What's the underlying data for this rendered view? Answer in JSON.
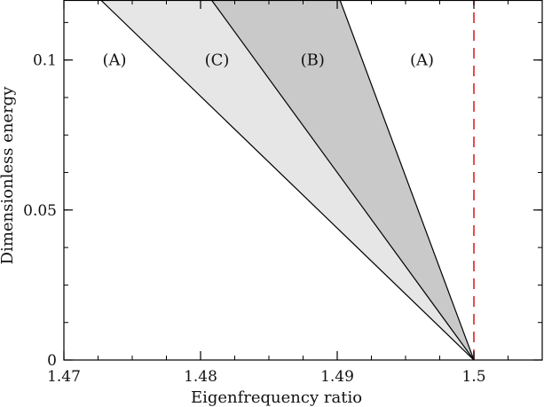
{
  "chart_data": {
    "type": "area",
    "title": "",
    "xlabel": "Eigenfrequency ratio",
    "ylabel": "Dimensionless energy",
    "xlim": [
      1.47,
      1.505
    ],
    "ylim": [
      0,
      0.12
    ],
    "x_ticks": [
      1.47,
      1.48,
      1.49,
      1.5
    ],
    "x_tick_labels": [
      "1.47",
      "1.48",
      "1.49",
      "1.5"
    ],
    "y_ticks": [
      0,
      0.05,
      0.1
    ],
    "y_tick_labels": [
      "0",
      "0.05",
      "0.1"
    ],
    "x_minor_step": 0.0025,
    "y_minor_step": 0.0125,
    "grid": false,
    "boundary_lines": [
      {
        "points": [
          [
            1.5,
            0
          ],
          [
            1.4727,
            0.12
          ]
        ]
      },
      {
        "points": [
          [
            1.5,
            0
          ],
          [
            1.4808,
            0.12
          ]
        ]
      },
      {
        "points": [
          [
            1.5,
            0
          ],
          [
            1.4902,
            0.12
          ]
        ]
      }
    ],
    "regions": [
      {
        "label": "(A)",
        "fill": "#ffffff",
        "label_at": [
          1.4737,
          0.1
        ]
      },
      {
        "label": "(C)",
        "fill": "#e6e6e6",
        "label_at": [
          1.4812,
          0.1
        ]
      },
      {
        "label": "(B)",
        "fill": "#c9c9c9",
        "label_at": [
          1.4882,
          0.1
        ]
      },
      {
        "label": "(A)",
        "fill": "#ffffff",
        "label_at": [
          1.4962,
          0.1
        ]
      }
    ],
    "reference_line": {
      "x": 1.5,
      "style": "dashed",
      "color": "#dd2222"
    }
  }
}
